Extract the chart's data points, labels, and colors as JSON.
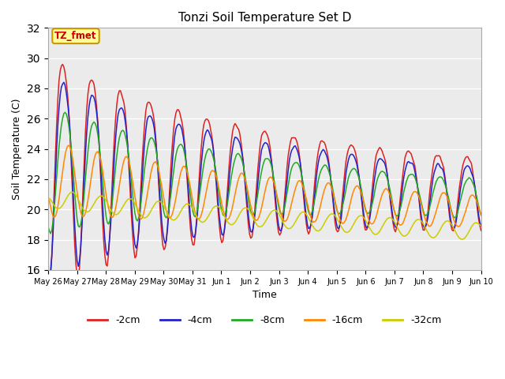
{
  "title": "Tonzi Soil Temperature Set D",
  "xlabel": "Time",
  "ylabel": "Soil Temperature (C)",
  "ylim": [
    16,
    32
  ],
  "yticks": [
    16,
    18,
    20,
    22,
    24,
    26,
    28,
    30,
    32
  ],
  "legend_label": "TZ_fmet",
  "legend_box_color": "#ffff99",
  "legend_box_edge": "#cc9900",
  "legend_text_color": "#cc0000",
  "bg_color": "#ebebeb",
  "series_colors": [
    "#dd2222",
    "#2222cc",
    "#22aa22",
    "#ff8800",
    "#cccc00"
  ],
  "series_labels": [
    "-2cm",
    "-4cm",
    "-8cm",
    "-16cm",
    "-32cm"
  ],
  "days": [
    "May 26",
    "May 27",
    "May 28",
    "May 29",
    "May 30",
    "May 31",
    "Jun 1",
    "Jun 2",
    "Jun 3",
    "Jun 4",
    "Jun 5",
    "Jun 6",
    "Jun 7",
    "Jun 8",
    "Jun 9",
    "Jun 10"
  ],
  "n_days": 15,
  "pts_per_day": 24
}
